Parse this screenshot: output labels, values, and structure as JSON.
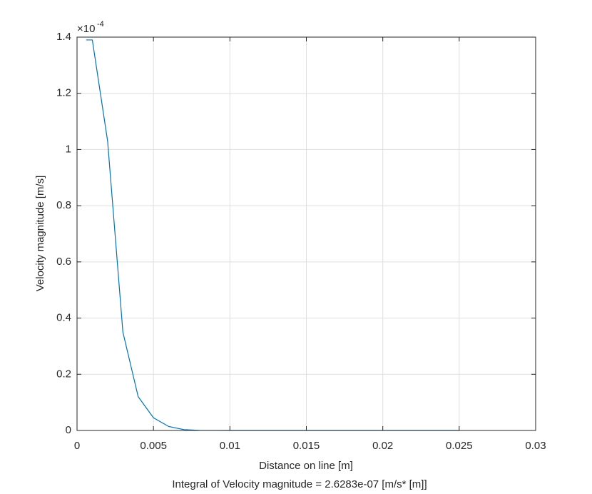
{
  "chart_data": {
    "type": "line",
    "xlabel": "Distance on line [m]",
    "ylabel": "Velocity magnitude [m/s]",
    "y_exponent_base": "×10",
    "y_exponent": "-4",
    "note": "Integral of Velocity magnitude  = 2.6283e-07 [m/s* [m]]",
    "x": [
      0.0006,
      0.001,
      0.002,
      0.003,
      0.004,
      0.005,
      0.006,
      0.007,
      0.008,
      0.01,
      0.015,
      0.02,
      0.025
    ],
    "series": [
      {
        "color": "#0072bd",
        "values": [
          1.39,
          1.39,
          1.03,
          0.35,
          0.12,
          0.045,
          0.014,
          0.003,
          0.0005,
          0,
          0,
          0,
          0
        ]
      }
    ],
    "xlim": [
      0,
      0.03
    ],
    "xticks": [
      0,
      0.005,
      0.01,
      0.015,
      0.02,
      0.025,
      0.03
    ],
    "ylim": [
      0,
      1.4
    ],
    "yticks": [
      0,
      0.2,
      0.4,
      0.6,
      0.8,
      1,
      1.2,
      1.4
    ],
    "grid": true
  }
}
